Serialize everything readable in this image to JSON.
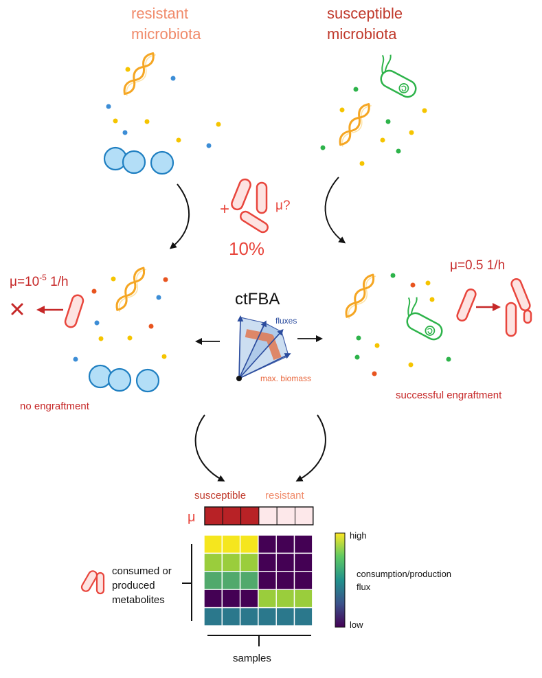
{
  "labels": {
    "resistant_title_line1": "resistant",
    "resistant_title_line2": "microbiota",
    "susceptible_title_line1": "susceptible",
    "susceptible_title_line2": "microbiota",
    "plus": "+",
    "mu_question": "μ?",
    "inoculum_percent": "10%",
    "mu_left_prefix": "μ=10",
    "mu_left_exponent": "-5",
    "mu_left_unit": " 1/h",
    "mu_right": "μ=0.5 1/h",
    "ctfba": "ctFBA",
    "fluxes": "fluxes",
    "max_biomass": "max. biomass",
    "no_engraftment": "no engraftment",
    "successful_engraftment": "successful engraftment",
    "heatmap_susceptible": "susceptible",
    "heatmap_resistant": "resistant",
    "heatmap_mu": "μ",
    "metabolites_line1": "consumed or",
    "metabolites_line2": "produced",
    "metabolites_line3": "metabolites",
    "samples": "samples",
    "colorbar_high": "high",
    "colorbar_low": "low",
    "colorbar_title_line1": "consumption/production",
    "colorbar_title_line2": "flux"
  },
  "colors": {
    "resistant": "#f08a6a",
    "susceptible": "#c0392b",
    "invader_stroke": "#e8453c",
    "invader_fill": "#fde3e1",
    "spiral": "#f5a623",
    "cocci_fill": "#b3def7",
    "cocci_stroke": "#1f7fc1",
    "rod_green": "#2db34a",
    "flux_blue": "#2b4c9e",
    "biomass_orange": "#f08a6a"
  },
  "heatmap": {
    "mu_row": [
      1,
      1,
      1,
      0,
      0,
      0
    ],
    "matrix": [
      [
        1.0,
        1.0,
        1.0,
        0.0,
        0.0,
        0.0
      ],
      [
        0.75,
        0.75,
        0.75,
        0.0,
        0.0,
        0.0
      ],
      [
        0.6,
        0.6,
        0.6,
        0.0,
        0.0,
        0.0
      ],
      [
        0.0,
        0.0,
        0.0,
        0.75,
        0.75,
        0.75
      ],
      [
        0.4,
        0.4,
        0.4,
        0.4,
        0.4,
        0.4
      ]
    ]
  }
}
